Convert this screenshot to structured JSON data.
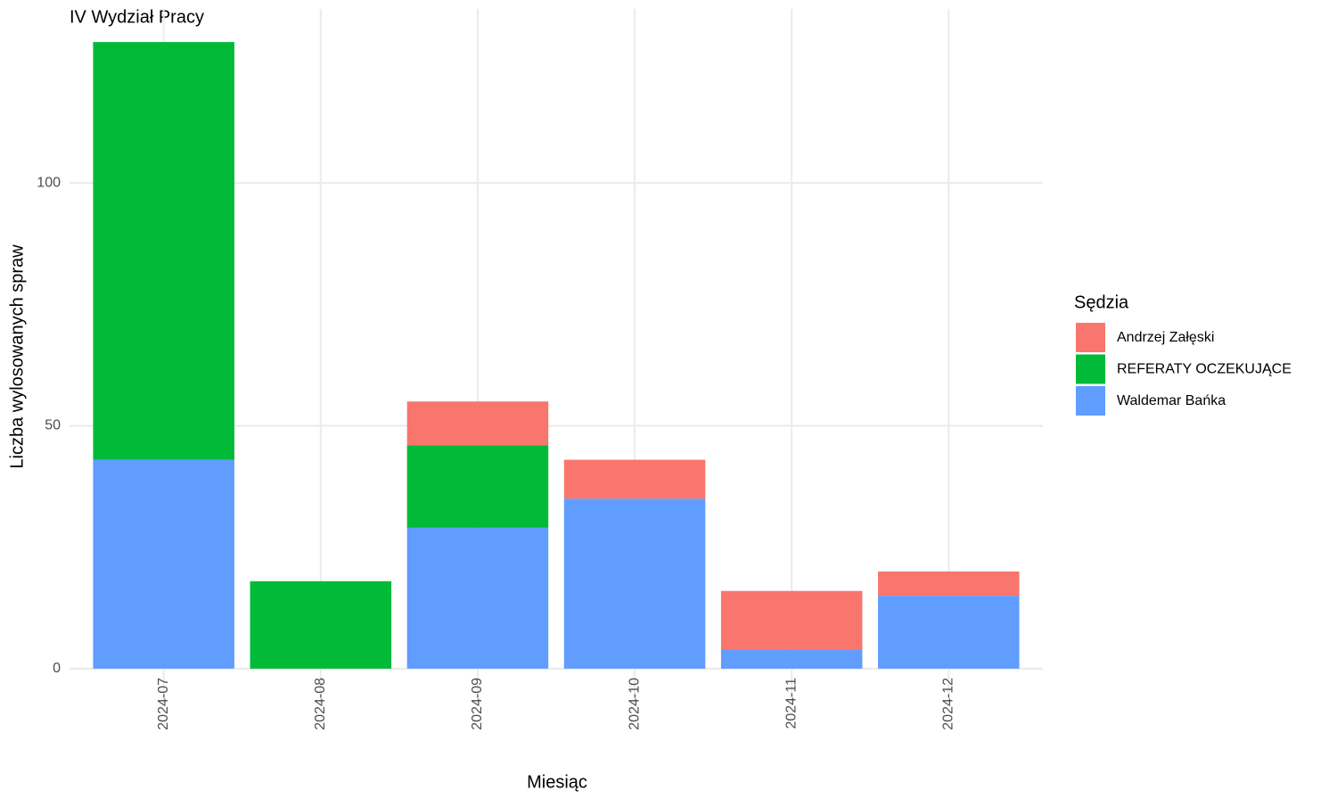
{
  "chart_data": {
    "type": "stacked_bar",
    "title": "IV Wydział Pracy",
    "x_label": "Miesiąc",
    "y_label": "Liczba wylosowanych spraw",
    "legend_title": "Sędzia",
    "categories": [
      "2024-07",
      "2024-08",
      "2024-09",
      "2024-10",
      "2024-11",
      "2024-12"
    ],
    "series": [
      {
        "name": "Andrzej Załęski",
        "color": "#F8766D",
        "values": [
          0,
          0,
          9,
          8,
          12,
          5
        ]
      },
      {
        "name": "REFERATY OCZEKUJĄCE",
        "color": "#00BA38",
        "values": [
          86,
          18,
          17,
          0,
          0,
          0
        ]
      },
      {
        "name": "Waldemar Bańka",
        "color": "#619CFF",
        "values": [
          43,
          0,
          29,
          35,
          4,
          15
        ]
      }
    ],
    "ylim": [
      -6.45,
      135.45
    ],
    "yticks": [
      0,
      50,
      100
    ],
    "grid": true
  }
}
